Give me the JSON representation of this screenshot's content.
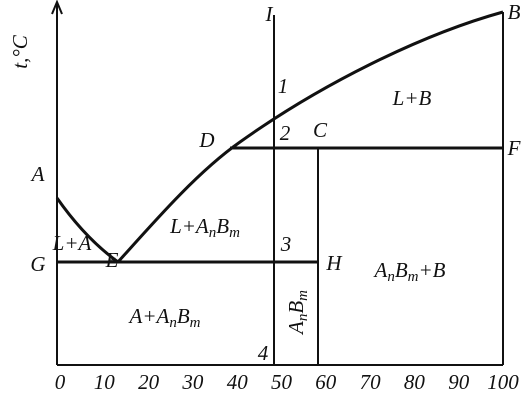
{
  "y_axis_label": "t,°C",
  "x_tick_labels": [
    "0",
    "10",
    "20",
    "30",
    "40",
    "50",
    "60",
    "70",
    "80",
    "90",
    "100"
  ],
  "point_labels": [
    "A",
    "B",
    "C",
    "D",
    "E",
    "F",
    "G",
    "H",
    "I",
    "1",
    "2",
    "3",
    "4"
  ],
  "region_labels": [
    [
      "L+B"
    ],
    [
      "L+A"
    ],
    [
      "L+A",
      "n",
      "B",
      "m"
    ],
    [
      "A",
      "n",
      "B",
      "m",
      "+B"
    ],
    [
      "A+A",
      "n",
      "B",
      "m"
    ],
    [
      "A",
      "n",
      "B",
      "m"
    ]
  ]
}
